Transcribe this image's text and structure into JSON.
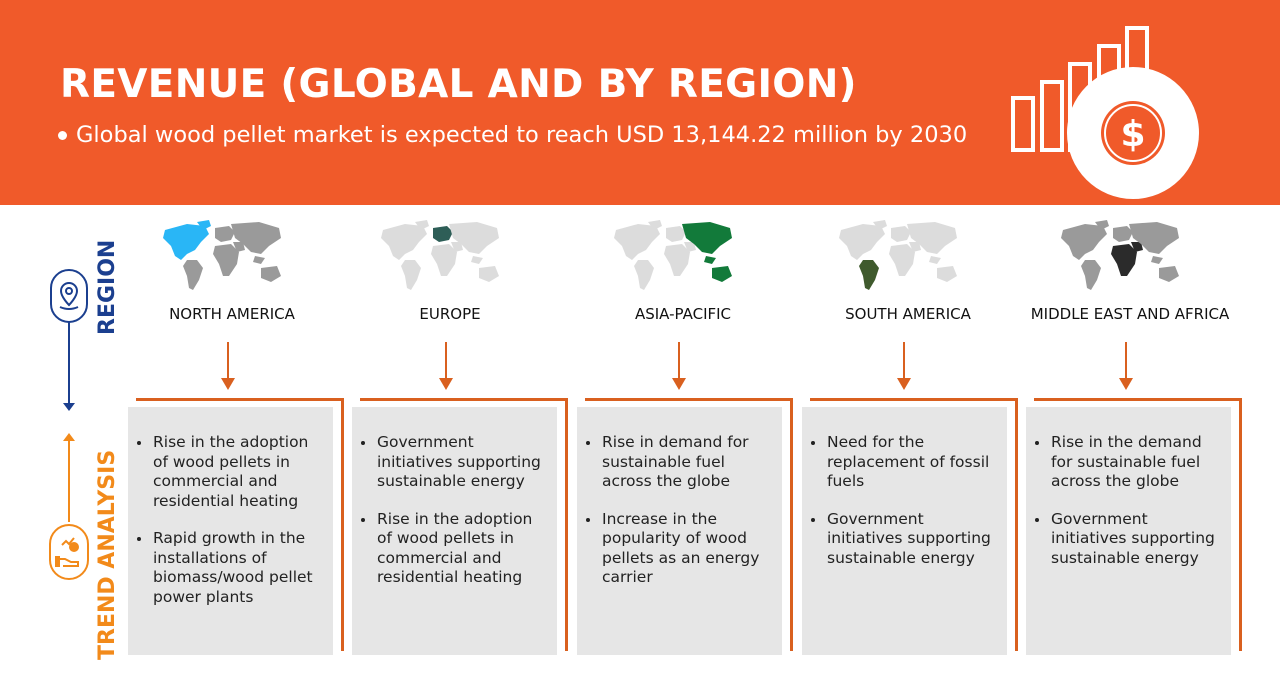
{
  "header": {
    "title": "REVENUE (GLOBAL AND BY REGION)",
    "subtitle": "Global wood pellet market is expected to reach USD 13,144.22 million by 2030",
    "graphic_icon": "dollar-bar-chart-icon"
  },
  "side": {
    "region_label": "REGION",
    "trend_label": "TREND ANALYSIS",
    "region_icon": "location-pin-icon",
    "trend_icon": "hand-growth-icon"
  },
  "colors": {
    "header_bg": "#f05a2a",
    "region_blue": "#1b3f8f",
    "trend_orange": "#f28a1a",
    "arrow_orange": "#d9601f",
    "card_bg": "#e6e6e6"
  },
  "regions": [
    {
      "name": "NORTH AMERICA",
      "highlight_color": "#29b6f6",
      "trends": [
        "Rise in the adoption of wood pellets in commercial and residential heating",
        "Rapid growth in the installations of biomass/wood pellet power plants"
      ]
    },
    {
      "name": "EUROPE",
      "highlight_color": "#2e5e57",
      "trends": [
        "Government initiatives supporting sustainable energy",
        "Rise in the adoption of wood pellets in commercial and residential heating"
      ]
    },
    {
      "name": "ASIA-PACIFIC",
      "highlight_color": "#127a3a",
      "trends": [
        "Rise in demand for sustainable fuel across the globe",
        "Increase in the popularity of wood pellets as an energy carrier"
      ]
    },
    {
      "name": "SOUTH AMERICA",
      "highlight_color": "#3f5a2d",
      "trends": [
        "Need for the replacement of fossil fuels",
        "Government initiatives supporting sustainable energy"
      ]
    },
    {
      "name": "MIDDLE EAST AND AFRICA",
      "highlight_color": "#2b2b2b",
      "trends": [
        "Rise in the demand for sustainable fuel across the globe",
        "Government initiatives supporting sustainable energy"
      ]
    }
  ]
}
